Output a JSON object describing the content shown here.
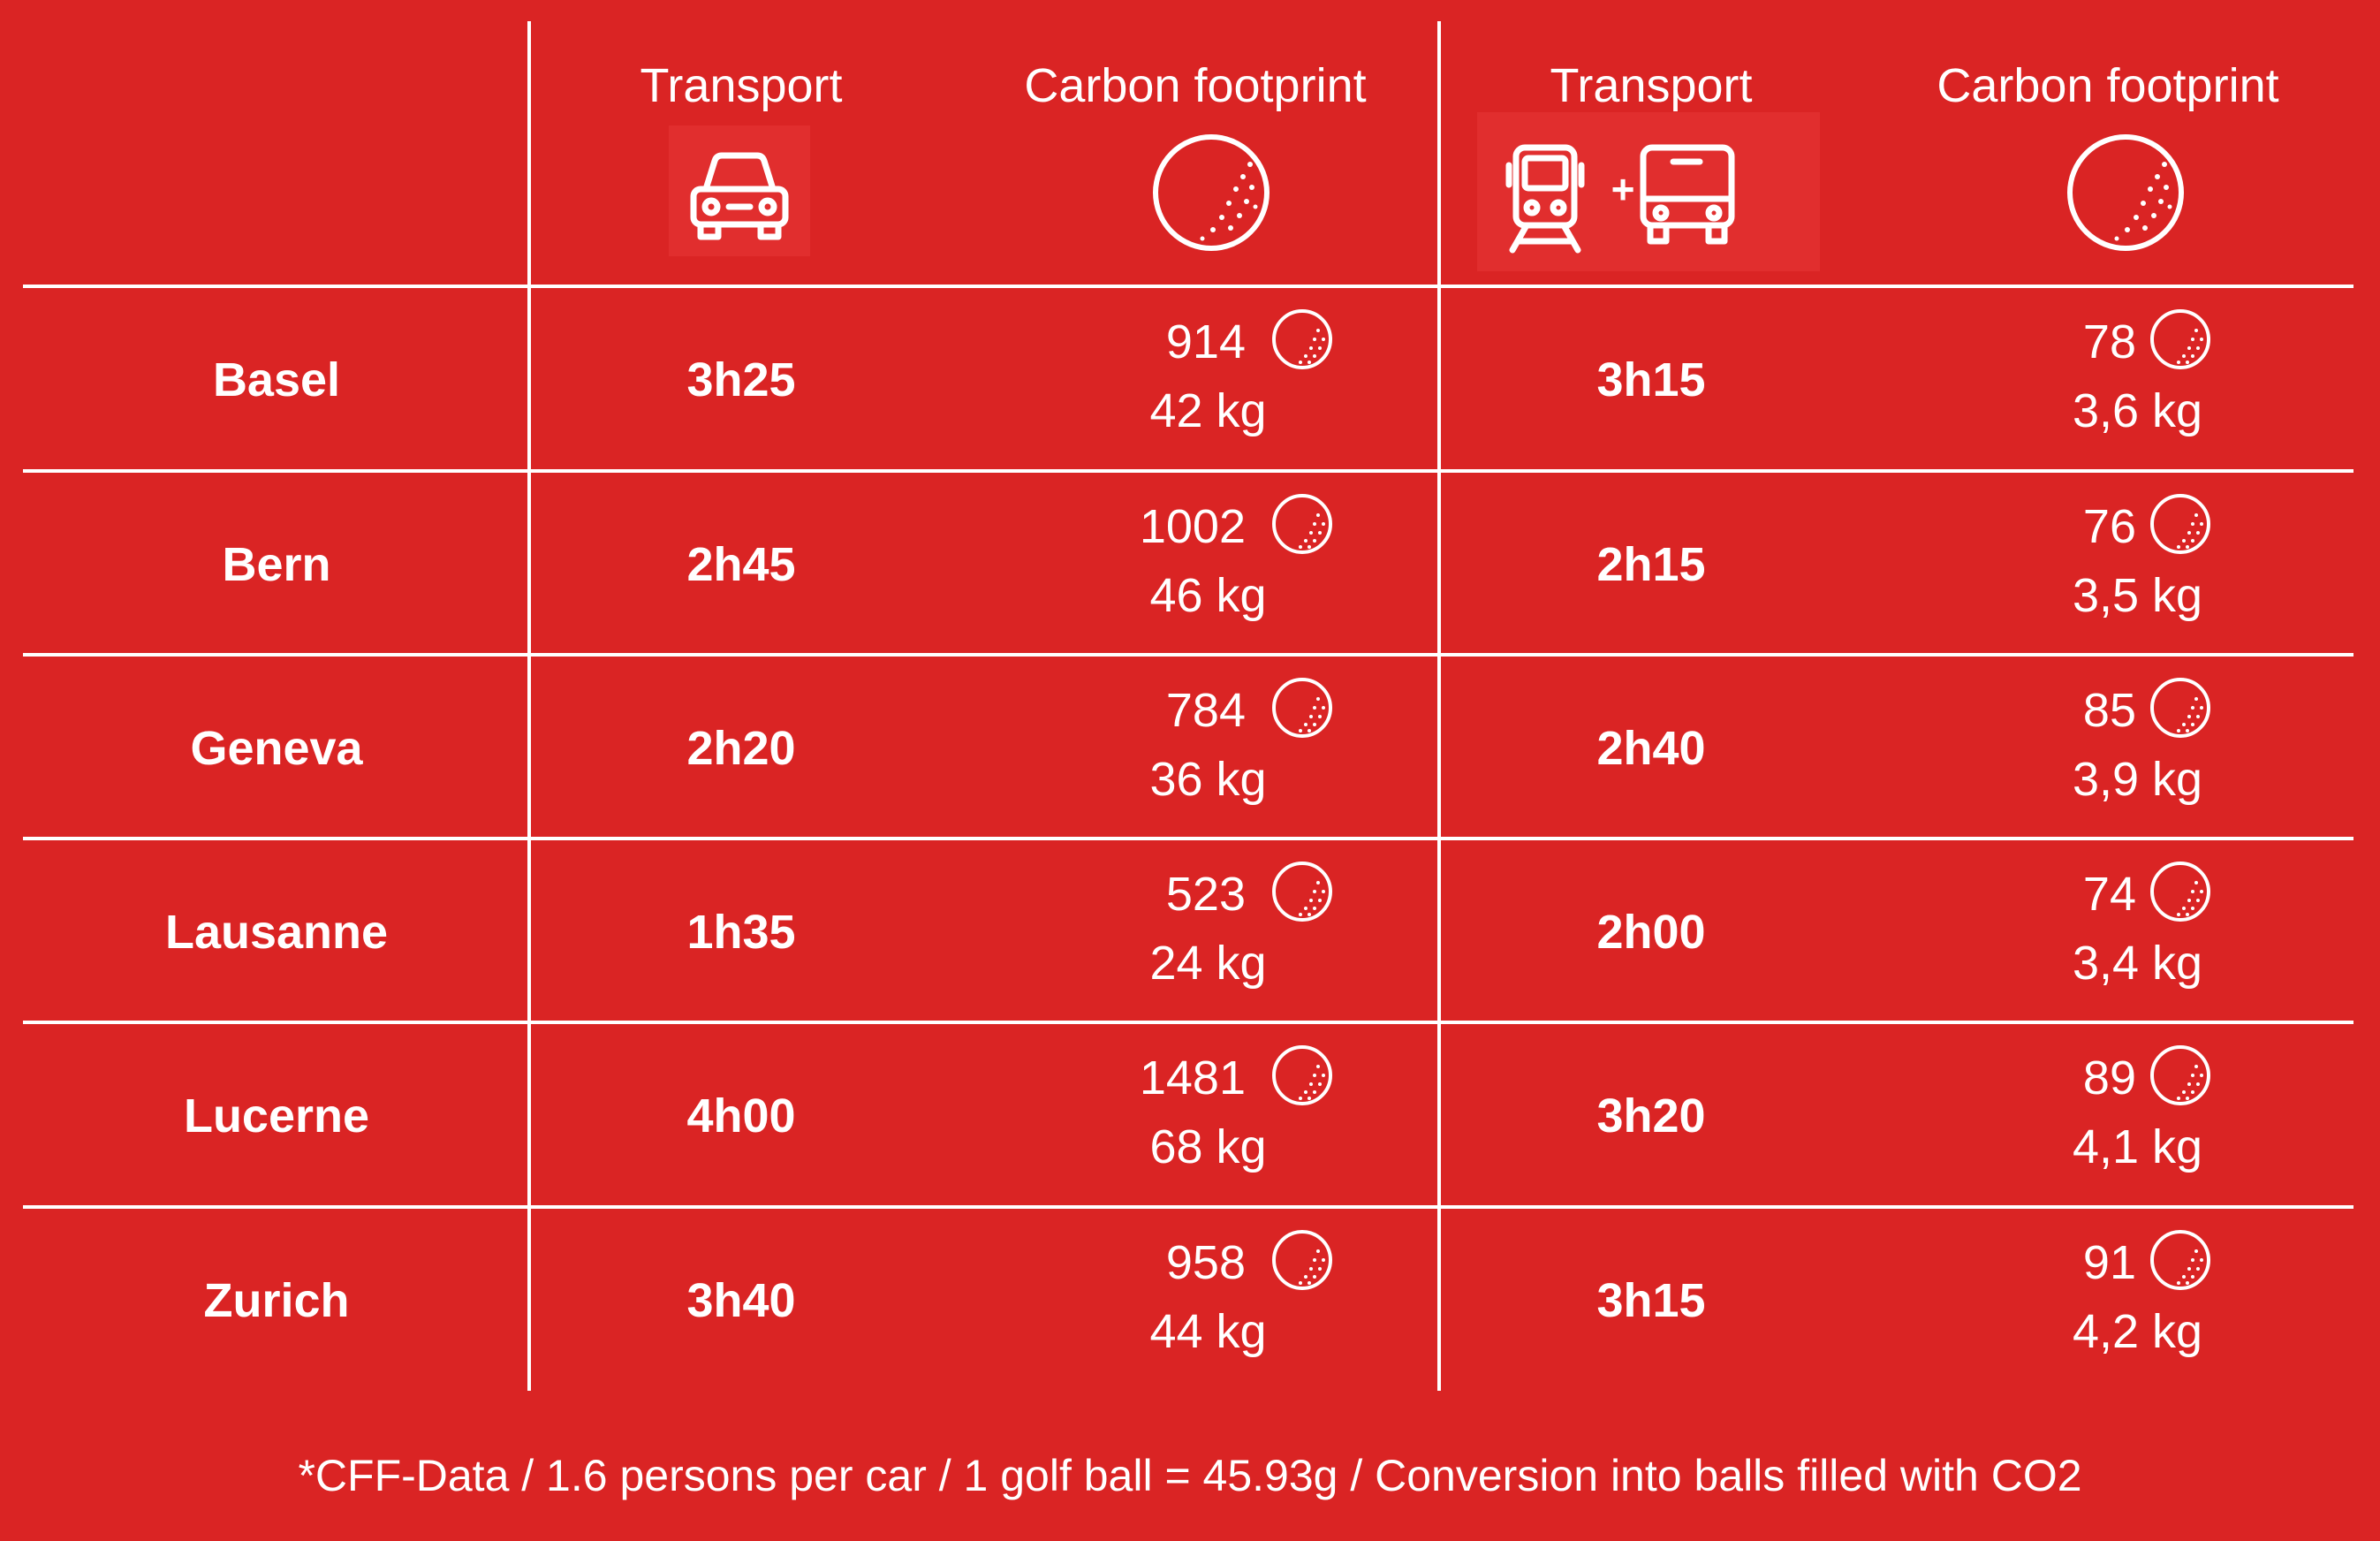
{
  "header": {
    "car_transport_label": "Transport",
    "car_footprint_label": "Carbon footprint",
    "public_transport_label": "Transport",
    "public_footprint_label": "Carbon footprint",
    "car_icon": "car-icon",
    "train_icon": "train-icon",
    "plus_symbol": "+",
    "bus_icon": "bus-icon",
    "footprint_icon": "golf-ball-icon"
  },
  "rows": [
    {
      "city": "Basel",
      "car_time": "3h25",
      "car_balls": "914",
      "car_kg": "42 kg",
      "public_time": "3h15",
      "public_balls": "78",
      "public_kg": "3,6 kg"
    },
    {
      "city": "Bern",
      "car_time": "2h45",
      "car_balls": "1002",
      "car_kg": "46 kg",
      "public_time": "2h15",
      "public_balls": "76",
      "public_kg": "3,5 kg"
    },
    {
      "city": "Geneva",
      "car_time": "2h20",
      "car_balls": "784",
      "car_kg": "36 kg",
      "public_time": "2h40",
      "public_balls": "85",
      "public_kg": "3,9 kg"
    },
    {
      "city": "Lausanne",
      "car_time": "1h35",
      "car_balls": "523",
      "car_kg": "24 kg",
      "public_time": "2h00",
      "public_balls": "74",
      "public_kg": "3,4 kg"
    },
    {
      "city": "Lucerne",
      "car_time": "4h00",
      "car_balls": "1481",
      "car_kg": "68 kg",
      "public_time": "3h20",
      "public_balls": "89",
      "public_kg": "4,1 kg"
    },
    {
      "city": "Zurich",
      "car_time": "3h40",
      "car_balls": "958",
      "car_kg": "44 kg",
      "public_time": "3h15",
      "public_balls": "91",
      "public_kg": "4,2 kg"
    }
  ],
  "footnote": "*CFF-Data / 1.6 persons per car / 1 golf ball = 45.93g / Conversion into balls filled with CO2",
  "colors": {
    "background": "#DA2424",
    "foreground": "#FFFFFF",
    "icon_tile": "#E12E2E"
  }
}
